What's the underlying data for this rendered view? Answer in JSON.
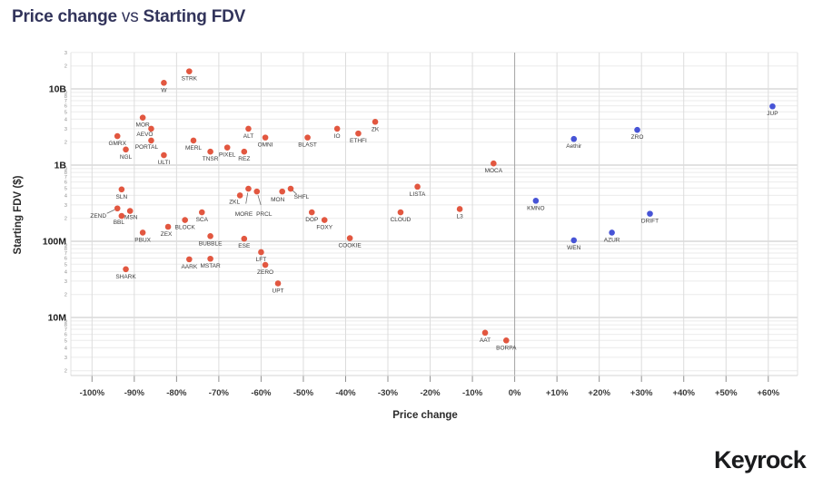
{
  "page": {
    "title_bold1": "Price change",
    "title_mid": "vs",
    "title_bold2": "Starting FDV",
    "branding": "Keyrock"
  },
  "chart_data": {
    "type": "scatter",
    "title": "Price change vs Starting FDV",
    "xlabel": "Price change",
    "ylabel": "Starting FDV ($)",
    "grid": true,
    "legend": "none",
    "x_axis": {
      "unit": "%",
      "range": [
        -105,
        67
      ],
      "ticks": [
        {
          "value": -100,
          "label": "-100%"
        },
        {
          "value": -90,
          "label": "-90%"
        },
        {
          "value": -80,
          "label": "-80%"
        },
        {
          "value": -70,
          "label": "-70%"
        },
        {
          "value": -60,
          "label": "-60%"
        },
        {
          "value": -50,
          "label": "-50%"
        },
        {
          "value": -40,
          "label": "-40%"
        },
        {
          "value": -30,
          "label": "-30%"
        },
        {
          "value": -20,
          "label": "-20%"
        },
        {
          "value": -10,
          "label": "-10%"
        },
        {
          "value": 0,
          "label": "0%"
        },
        {
          "value": 10,
          "label": "+10%"
        },
        {
          "value": 20,
          "label": "+20%"
        },
        {
          "value": 30,
          "label": "+30%"
        },
        {
          "value": 40,
          "label": "+40%"
        },
        {
          "value": 50,
          "label": "+50%"
        },
        {
          "value": 60,
          "label": "+60%"
        }
      ]
    },
    "y_axis": {
      "scale": "log",
      "unit": "$",
      "range_min": 2000000,
      "range_max": 30000000000,
      "major_ticks": [
        {
          "value": 10000000000,
          "label": "10B"
        },
        {
          "value": 1000000000,
          "label": "1B"
        },
        {
          "value": 100000000,
          "label": "100M"
        },
        {
          "value": 10000000,
          "label": "10M"
        }
      ],
      "minor_tick_digits": [
        2,
        3,
        4,
        5,
        6,
        7,
        8,
        9
      ]
    },
    "style": {
      "negative_color": "#E25740",
      "positive_color": "#4754D6",
      "grid_minor": "#ebebeb",
      "grid_major": "#c6c6c6",
      "grid_vertical": "#dcdcdc",
      "zero_line": "#a3a3a3",
      "tick_mark": "#8f8f8f",
      "tick_label": "#383838",
      "point_label": "#3a3a3a",
      "minor_label": "#909090",
      "major_label": "#1c1c1c",
      "leader_line": "#666666"
    },
    "series": [
      {
        "name": "negative-price-change",
        "color_key": "negative_color",
        "points": [
          {
            "label": "STRK",
            "price_change": -77,
            "fdv": 17000000000
          },
          {
            "label": "W",
            "price_change": -83,
            "fdv": 12000000000
          },
          {
            "label": "MOR",
            "price_change": -88,
            "fdv": 4200000000
          },
          {
            "label": "AEVO",
            "price_change": -86,
            "fdv": 3000000000,
            "label_offset": [
              -7,
              8
            ]
          },
          {
            "label": "PORTAL",
            "price_change": -86,
            "fdv": 2100000000,
            "label_offset": [
              -5,
              9
            ]
          },
          {
            "label": "GMRX",
            "price_change": -94,
            "fdv": 2400000000
          },
          {
            "label": "NGL",
            "price_change": -92,
            "fdv": 1600000000
          },
          {
            "label": "ULTI",
            "price_change": -83,
            "fdv": 1350000000
          },
          {
            "label": "MERL",
            "price_change": -76,
            "fdv": 2100000000
          },
          {
            "label": "TNSR",
            "price_change": -72,
            "fdv": 1500000000
          },
          {
            "label": "PIXEL",
            "price_change": -68,
            "fdv": 1700000000
          },
          {
            "label": "ALT",
            "price_change": -63,
            "fdv": 3000000000
          },
          {
            "label": "REZ",
            "price_change": -64,
            "fdv": 1500000000
          },
          {
            "label": "OMNI",
            "price_change": -59,
            "fdv": 2300000000
          },
          {
            "label": "BLAST",
            "price_change": -49,
            "fdv": 2300000000
          },
          {
            "label": "IO",
            "price_change": -42,
            "fdv": 3000000000
          },
          {
            "label": "ETHFI",
            "price_change": -37,
            "fdv": 2600000000
          },
          {
            "label": "ZK",
            "price_change": -33,
            "fdv": 3700000000
          },
          {
            "label": "MOCA",
            "price_change": -5,
            "fdv": 1050000000
          },
          {
            "label": "SLN",
            "price_change": -93,
            "fdv": 480000000
          },
          {
            "label": "ZEND",
            "price_change": -94,
            "fdv": 270000000,
            "label_offset": [
              -21,
              10
            ],
            "leader": true
          },
          {
            "label": "MSN",
            "price_change": -91,
            "fdv": 250000000,
            "label_offset": [
              1,
              9
            ]
          },
          {
            "label": "BBL",
            "price_change": -93,
            "fdv": 215000000,
            "label_offset": [
              -3,
              9
            ]
          },
          {
            "label": "PBUX",
            "price_change": -88,
            "fdv": 130000000
          },
          {
            "label": "ZEX",
            "price_change": -82,
            "fdv": 155000000,
            "label_offset": [
              -2,
              10
            ]
          },
          {
            "label": "BLOCK",
            "price_change": -78,
            "fdv": 190000000
          },
          {
            "label": "SCA",
            "price_change": -74,
            "fdv": 240000000
          },
          {
            "label": "BUBBLE",
            "price_change": -72,
            "fdv": 117000000
          },
          {
            "label": "ESE",
            "price_change": -64,
            "fdv": 108000000
          },
          {
            "label": "ZKL",
            "price_change": -65,
            "fdv": 400000000,
            "label_offset": [
              -6,
              9
            ]
          },
          {
            "label": "MORE",
            "price_change": -63,
            "fdv": 490000000,
            "label_offset": [
              -5,
              30
            ],
            "leader": true
          },
          {
            "label": "PRCL",
            "price_change": -61,
            "fdv": 450000000,
            "label_offset": [
              8,
              27
            ],
            "leader": true
          },
          {
            "label": "MON",
            "price_change": -55,
            "fdv": 450000000,
            "label_offset": [
              -5,
              11
            ]
          },
          {
            "label": "SHFL",
            "price_change": -53,
            "fdv": 490000000,
            "label_offset": [
              12,
              11
            ],
            "leader": true
          },
          {
            "label": "DOP",
            "price_change": -48,
            "fdv": 240000000
          },
          {
            "label": "FOXY",
            "price_change": -45,
            "fdv": 190000000
          },
          {
            "label": "COOKIE",
            "price_change": -39,
            "fdv": 110000000
          },
          {
            "label": "CLOUD",
            "price_change": -27,
            "fdv": 240000000
          },
          {
            "label": "LISTA",
            "price_change": -23,
            "fdv": 520000000
          },
          {
            "label": "L3",
            "price_change": -13,
            "fdv": 265000000
          },
          {
            "label": "AARK",
            "price_change": -77,
            "fdv": 58000000
          },
          {
            "label": "MSTAR",
            "price_change": -72,
            "fdv": 59000000
          },
          {
            "label": "LFT",
            "price_change": -60,
            "fdv": 72000000
          },
          {
            "label": "ZERO",
            "price_change": -59,
            "fdv": 49000000
          },
          {
            "label": "SHARK",
            "price_change": -92,
            "fdv": 43000000
          },
          {
            "label": "UPT",
            "price_change": -56,
            "fdv": 28000000
          },
          {
            "label": "AAT",
            "price_change": -7,
            "fdv": 6300000
          },
          {
            "label": "BORPA",
            "price_change": -2,
            "fdv": 5000000
          }
        ]
      },
      {
        "name": "positive-price-change",
        "color_key": "positive_color",
        "points": [
          {
            "label": "KMNO",
            "price_change": 5,
            "fdv": 340000000
          },
          {
            "label": "Aethir",
            "price_change": 14,
            "fdv": 2200000000
          },
          {
            "label": "ZRO",
            "price_change": 29,
            "fdv": 2900000000
          },
          {
            "label": "JUP",
            "price_change": 61,
            "fdv": 5900000000
          },
          {
            "label": "DRIFT",
            "price_change": 32,
            "fdv": 230000000
          },
          {
            "label": "AZUR",
            "price_change": 23,
            "fdv": 130000000
          },
          {
            "label": "WEN",
            "price_change": 14,
            "fdv": 103000000
          }
        ]
      }
    ]
  }
}
